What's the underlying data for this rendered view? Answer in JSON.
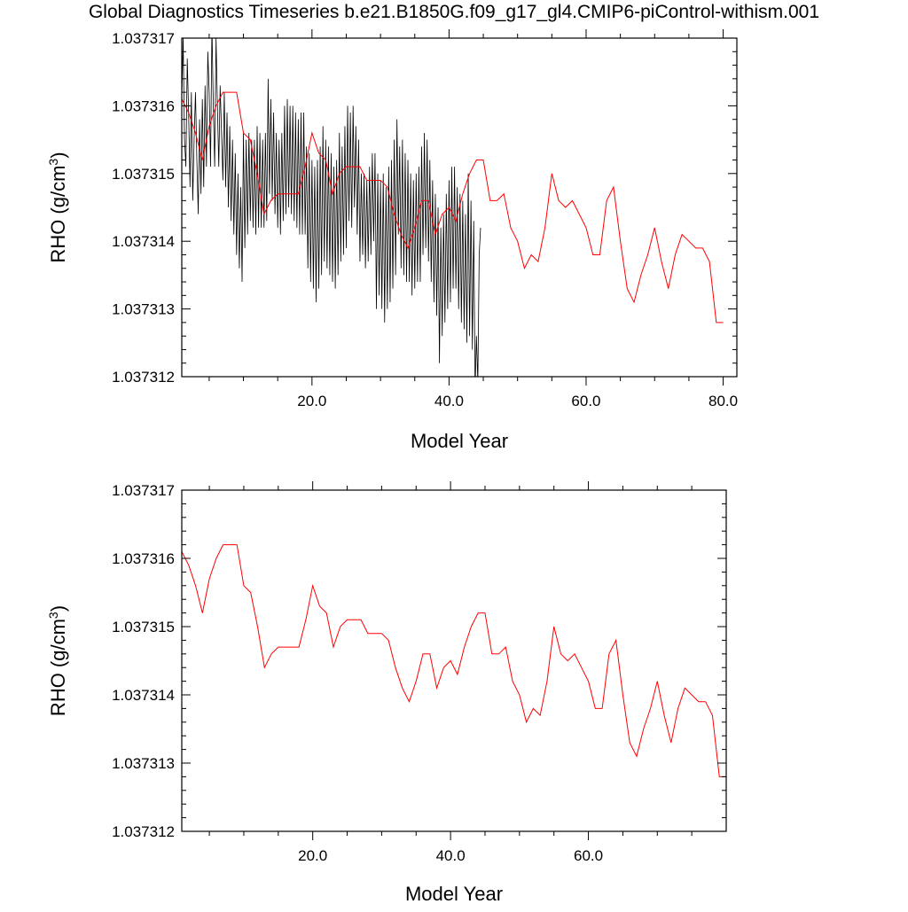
{
  "title": "Global Diagnostics Timeseries b.e21.B1850G.f09_g17_gl4.CMIP6-piControl-withism.001",
  "colors": {
    "monthly": "#000000",
    "annual": "#ff0000"
  },
  "chart_data": [
    {
      "type": "line",
      "xlabel": "Model Year",
      "ylabel": "RHO (g/cm3)",
      "ylabel_parts": {
        "main": "RHO (g/cm",
        "sup": "3",
        "close": ")"
      },
      "xlim": [
        1,
        82
      ],
      "ylim": [
        1.037312,
        1.037317
      ],
      "x_ticks": [
        "20.0",
        "40.0",
        "60.0",
        "80.0"
      ],
      "y_ticks": [
        "1.037312",
        "1.037313",
        "1.037314",
        "1.037315",
        "1.037316",
        "1.037317"
      ],
      "series": [
        {
          "style": "monthly",
          "x_start": 1.0,
          "x_step": 0.2,
          "values": [
            1.0373161,
            1.037317,
            1.0373155,
            1.0373151,
            1.0373167,
            1.0373159,
            1.0373148,
            1.0373162,
            1.0373146,
            1.0373155,
            1.0373162,
            1.0373152,
            1.0373144,
            1.0373158,
            1.0373147,
            1.0373161,
            1.0373148,
            1.0373163,
            1.0373151,
            1.0373168,
            1.0373162,
            1.0373151,
            1.0373172,
            1.037316,
            1.0373151,
            1.037317,
            1.037316,
            1.0373151,
            1.0373163,
            1.0373156,
            1.0373149,
            1.0373162,
            1.0373148,
            1.0373159,
            1.0373145,
            1.0373157,
            1.0373143,
            1.0373155,
            1.0373141,
            1.0373153,
            1.0373138,
            1.037315,
            1.0373136,
            1.0373148,
            1.0373134,
            1.0373156,
            1.0373139,
            1.0373155,
            1.0373141,
            1.0373156,
            1.0373143,
            1.0373155,
            1.0373142,
            1.0373155,
            1.0373141,
            1.0373157,
            1.0373142,
            1.0373156,
            1.0373142,
            1.0373155,
            1.0373142,
            1.0373156,
            1.0373143,
            1.0373164,
            1.0373147,
            1.0373161,
            1.0373146,
            1.0373159,
            1.0373144,
            1.0373156,
            1.0373142,
            1.0373155,
            1.0373141,
            1.0373156,
            1.0373143,
            1.037316,
            1.0373144,
            1.0373161,
            1.0373145,
            1.037316,
            1.0373144,
            1.037316,
            1.0373143,
            1.0373159,
            1.0373142,
            1.0373158,
            1.0373141,
            1.0373159,
            1.0373141,
            1.0373159,
            1.0373141,
            1.0373154,
            1.0373136,
            1.0373153,
            1.0373134,
            1.0373152,
            1.0373133,
            1.0373151,
            1.0373131,
            1.0373152,
            1.0373133,
            1.0373154,
            1.0373135,
            1.0373157,
            1.0373137,
            1.0373155,
            1.0373136,
            1.0373154,
            1.0373135,
            1.0373153,
            1.0373134,
            1.0373151,
            1.0373133,
            1.0373152,
            1.0373135,
            1.0373156,
            1.0373137,
            1.0373154,
            1.0373138,
            1.0373157,
            1.0373139,
            1.037316,
            1.0373143,
            1.0373159,
            1.0373142,
            1.037316,
            1.0373145,
            1.0373157,
            1.0373141,
            1.0373155,
            1.0373137,
            1.037315,
            1.0373138,
            1.037315,
            1.0373136,
            1.0373149,
            1.0373137,
            1.0373151,
            1.0373138,
            1.0373153,
            1.037314,
            1.0373153,
            1.037313,
            1.037315,
            1.0373132,
            1.0373149,
            1.037313,
            1.037315,
            1.0373128,
            1.0373148,
            1.037313,
            1.0373151,
            1.0373131,
            1.0373152,
            1.0373133,
            1.0373155,
            1.0373135,
            1.0373158,
            1.0373141,
            1.0373154,
            1.0373136,
            1.0373155,
            1.0373135,
            1.0373153,
            1.0373134,
            1.0373152,
            1.0373134,
            1.037315,
            1.0373132,
            1.0373149,
            1.0373133,
            1.037315,
            1.0373134,
            1.0373151,
            1.0373134,
            1.0373154,
            1.0373138,
            1.0373156,
            1.0373139,
            1.0373155,
            1.0373137,
            1.0373152,
            1.0373134,
            1.0373149,
            1.0373131,
            1.0373147,
            1.0373129,
            1.0373145,
            1.0373122,
            1.0373142,
            1.0373126,
            1.0373144,
            1.0373128,
            1.0373147,
            1.037313,
            1.0373149,
            1.0373131,
            1.0373151,
            1.0373133,
            1.0373151,
            1.0373133,
            1.0373148,
            1.037313,
            1.0373147,
            1.0373128,
            1.0373146,
            1.0373127,
            1.0373144,
            1.0373125,
            1.037315,
            1.0373126,
            1.0373146,
            1.0373124,
            1.0373143,
            1.0373118,
            1.0373126,
            1.0373119,
            1.0373138,
            1.0373142
          ]
        },
        {
          "style": "annual",
          "x": [
            1,
            2,
            3,
            4,
            5,
            6,
            7,
            8,
            9,
            10,
            11,
            12,
            13,
            14,
            15,
            16,
            17,
            18,
            19,
            20,
            21,
            22,
            23,
            24,
            25,
            26,
            27,
            28,
            29,
            30,
            31,
            32,
            33,
            34,
            35,
            36,
            37,
            38,
            39,
            40,
            41,
            42,
            43,
            44,
            45,
            46,
            47,
            48,
            49,
            50,
            51,
            52,
            53,
            54,
            55,
            56,
            57,
            58,
            59,
            60,
            61,
            62,
            63,
            64,
            65,
            66,
            67,
            68,
            69,
            70,
            71,
            72,
            73,
            74,
            75,
            76,
            77,
            78,
            79,
            80
          ],
          "values": [
            1.0373161,
            1.0373159,
            1.0373156,
            1.0373152,
            1.0373157,
            1.037316,
            1.0373162,
            1.0373162,
            1.0373162,
            1.0373156,
            1.0373155,
            1.037315,
            1.0373144,
            1.0373146,
            1.0373147,
            1.0373147,
            1.0373147,
            1.0373147,
            1.0373151,
            1.0373156,
            1.0373153,
            1.0373152,
            1.0373147,
            1.037315,
            1.0373151,
            1.0373151,
            1.0373151,
            1.0373149,
            1.0373149,
            1.0373149,
            1.0373148,
            1.0373144,
            1.0373141,
            1.0373139,
            1.0373142,
            1.0373146,
            1.0373146,
            1.0373141,
            1.0373144,
            1.0373145,
            1.0373143,
            1.0373147,
            1.037315,
            1.0373152,
            1.0373152,
            1.0373146,
            1.0373146,
            1.0373147,
            1.0373142,
            1.037314,
            1.0373136,
            1.0373138,
            1.0373137,
            1.0373142,
            1.037315,
            1.0373146,
            1.0373145,
            1.0373146,
            1.0373144,
            1.0373142,
            1.0373138,
            1.0373138,
            1.0373146,
            1.0373148,
            1.037314,
            1.0373133,
            1.0373131,
            1.0373135,
            1.0373138,
            1.0373142,
            1.0373137,
            1.0373133,
            1.0373138,
            1.0373141,
            1.037314,
            1.0373139,
            1.0373139,
            1.0373137,
            1.0373128,
            1.0373128
          ]
        }
      ]
    },
    {
      "type": "line",
      "xlabel": "Model Year",
      "ylabel": "RHO (g/cm3)",
      "ylabel_parts": {
        "main": "RHO (g/cm",
        "sup": "3",
        "close": ")"
      },
      "xlim": [
        1,
        80
      ],
      "ylim": [
        1.037312,
        1.037317
      ],
      "x_ticks": [
        "20.0",
        "40.0",
        "60.0"
      ],
      "y_ticks": [
        "1.037312",
        "1.037313",
        "1.037314",
        "1.037315",
        "1.037316",
        "1.037317"
      ],
      "series": [
        {
          "style": "annual",
          "x": [
            1,
            2,
            3,
            4,
            5,
            6,
            7,
            8,
            9,
            10,
            11,
            12,
            13,
            14,
            15,
            16,
            17,
            18,
            19,
            20,
            21,
            22,
            23,
            24,
            25,
            26,
            27,
            28,
            29,
            30,
            31,
            32,
            33,
            34,
            35,
            36,
            37,
            38,
            39,
            40,
            41,
            42,
            43,
            44,
            45,
            46,
            47,
            48,
            49,
            50,
            51,
            52,
            53,
            54,
            55,
            56,
            57,
            58,
            59,
            60,
            61,
            62,
            63,
            64,
            65,
            66,
            67,
            68,
            69,
            70,
            71,
            72,
            73,
            74,
            75,
            76,
            77,
            78,
            79,
            80
          ],
          "values": [
            1.0373161,
            1.0373159,
            1.0373156,
            1.0373152,
            1.0373157,
            1.037316,
            1.0373162,
            1.0373162,
            1.0373162,
            1.0373156,
            1.0373155,
            1.037315,
            1.0373144,
            1.0373146,
            1.0373147,
            1.0373147,
            1.0373147,
            1.0373147,
            1.0373151,
            1.0373156,
            1.0373153,
            1.0373152,
            1.0373147,
            1.037315,
            1.0373151,
            1.0373151,
            1.0373151,
            1.0373149,
            1.0373149,
            1.0373149,
            1.0373148,
            1.0373144,
            1.0373141,
            1.0373139,
            1.0373142,
            1.0373146,
            1.0373146,
            1.0373141,
            1.0373144,
            1.0373145,
            1.0373143,
            1.0373147,
            1.037315,
            1.0373152,
            1.0373152,
            1.0373146,
            1.0373146,
            1.0373147,
            1.0373142,
            1.037314,
            1.0373136,
            1.0373138,
            1.0373137,
            1.0373142,
            1.037315,
            1.0373146,
            1.0373145,
            1.0373146,
            1.0373144,
            1.0373142,
            1.0373138,
            1.0373138,
            1.0373146,
            1.0373148,
            1.037314,
            1.0373133,
            1.0373131,
            1.0373135,
            1.0373138,
            1.0373142,
            1.0373137,
            1.0373133,
            1.0373138,
            1.0373141,
            1.037314,
            1.0373139,
            1.0373139,
            1.0373137,
            1.0373128,
            1.0373128
          ]
        }
      ]
    }
  ]
}
